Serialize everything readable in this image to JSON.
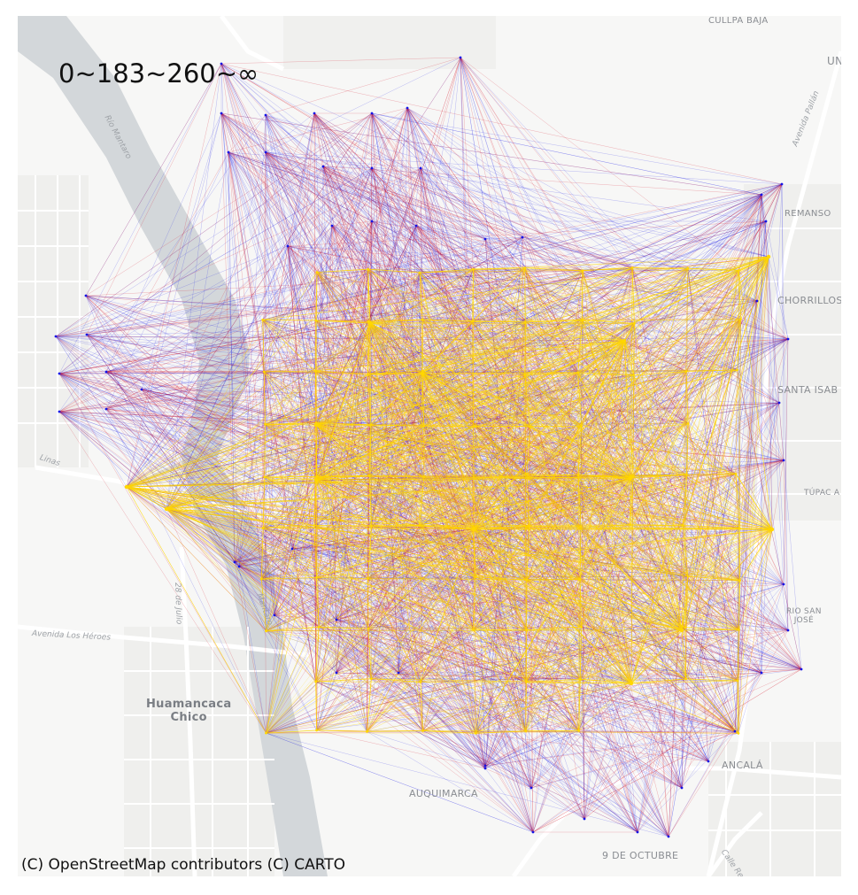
{
  "legend": {
    "text": "0~183~260~∞"
  },
  "attribution": "(C) OpenStreetMap contributors (C) CARTO",
  "colors": {
    "background": "#f7f7f6",
    "river": "#d3d7da",
    "roads": "#ffffff",
    "blocks": "#eeeeec",
    "low": "#1414e6",
    "mid": "#d7192a",
    "high": "#ffd700"
  },
  "basemap_labels": {
    "culpa_baja": "CULLPA BAJA",
    "remanso": "REMANSO",
    "chorrillos": "CHORRILLOS",
    "santa_isabel": "SANTA ISAB",
    "tupac": "TÚPAC A",
    "barrio_san_jose_1": "RIO SAN",
    "barrio_san_jose_2": "JOSÉ",
    "ancala": "ANCALÁ",
    "auquimarca": "AUQUIMARCA",
    "nueve_octubre": "9 DE OCTUBRE",
    "huamancaca_1": "Huamancaca",
    "huamancaca_2": "Chico",
    "un": "UN",
    "rio_mantaro": "Río Mantaro",
    "avenida_pallan": "Avenida Pallán",
    "avenida_heroes": "Avenida Los Héroes",
    "av_28_julio": "28 de Julio",
    "calle_re": "Calle Re",
    "linas": "Linas",
    "rio": "Río",
    "mantaro_small": "Mantaro"
  },
  "network": {
    "bins": [
      "0~183",
      "183~260",
      "260~∞"
    ],
    "hubs": [
      [
        143,
        550
      ],
      [
        188,
        575
      ],
      [
        357,
        542
      ],
      [
        357,
        480
      ],
      [
        477,
        422
      ],
      [
        535,
        598
      ],
      [
        712,
        540
      ],
      [
        713,
        772
      ],
      [
        770,
        712
      ],
      [
        868,
        290
      ],
      [
        872,
        598
      ],
      [
        705,
        385
      ],
      [
        418,
        365
      ]
    ],
    "boundary": [
      [
        520,
        65
      ],
      [
        883,
        208
      ],
      [
        890,
        383
      ],
      [
        905,
        756
      ],
      [
        755,
        945
      ],
      [
        602,
        940
      ],
      [
        548,
        868
      ],
      [
        380,
        760
      ],
      [
        310,
        695
      ],
      [
        265,
        635
      ],
      [
        188,
        575
      ],
      [
        143,
        550
      ],
      [
        67,
        465
      ],
      [
        63,
        380
      ],
      [
        97,
        334
      ],
      [
        250,
        72
      ]
    ]
  }
}
